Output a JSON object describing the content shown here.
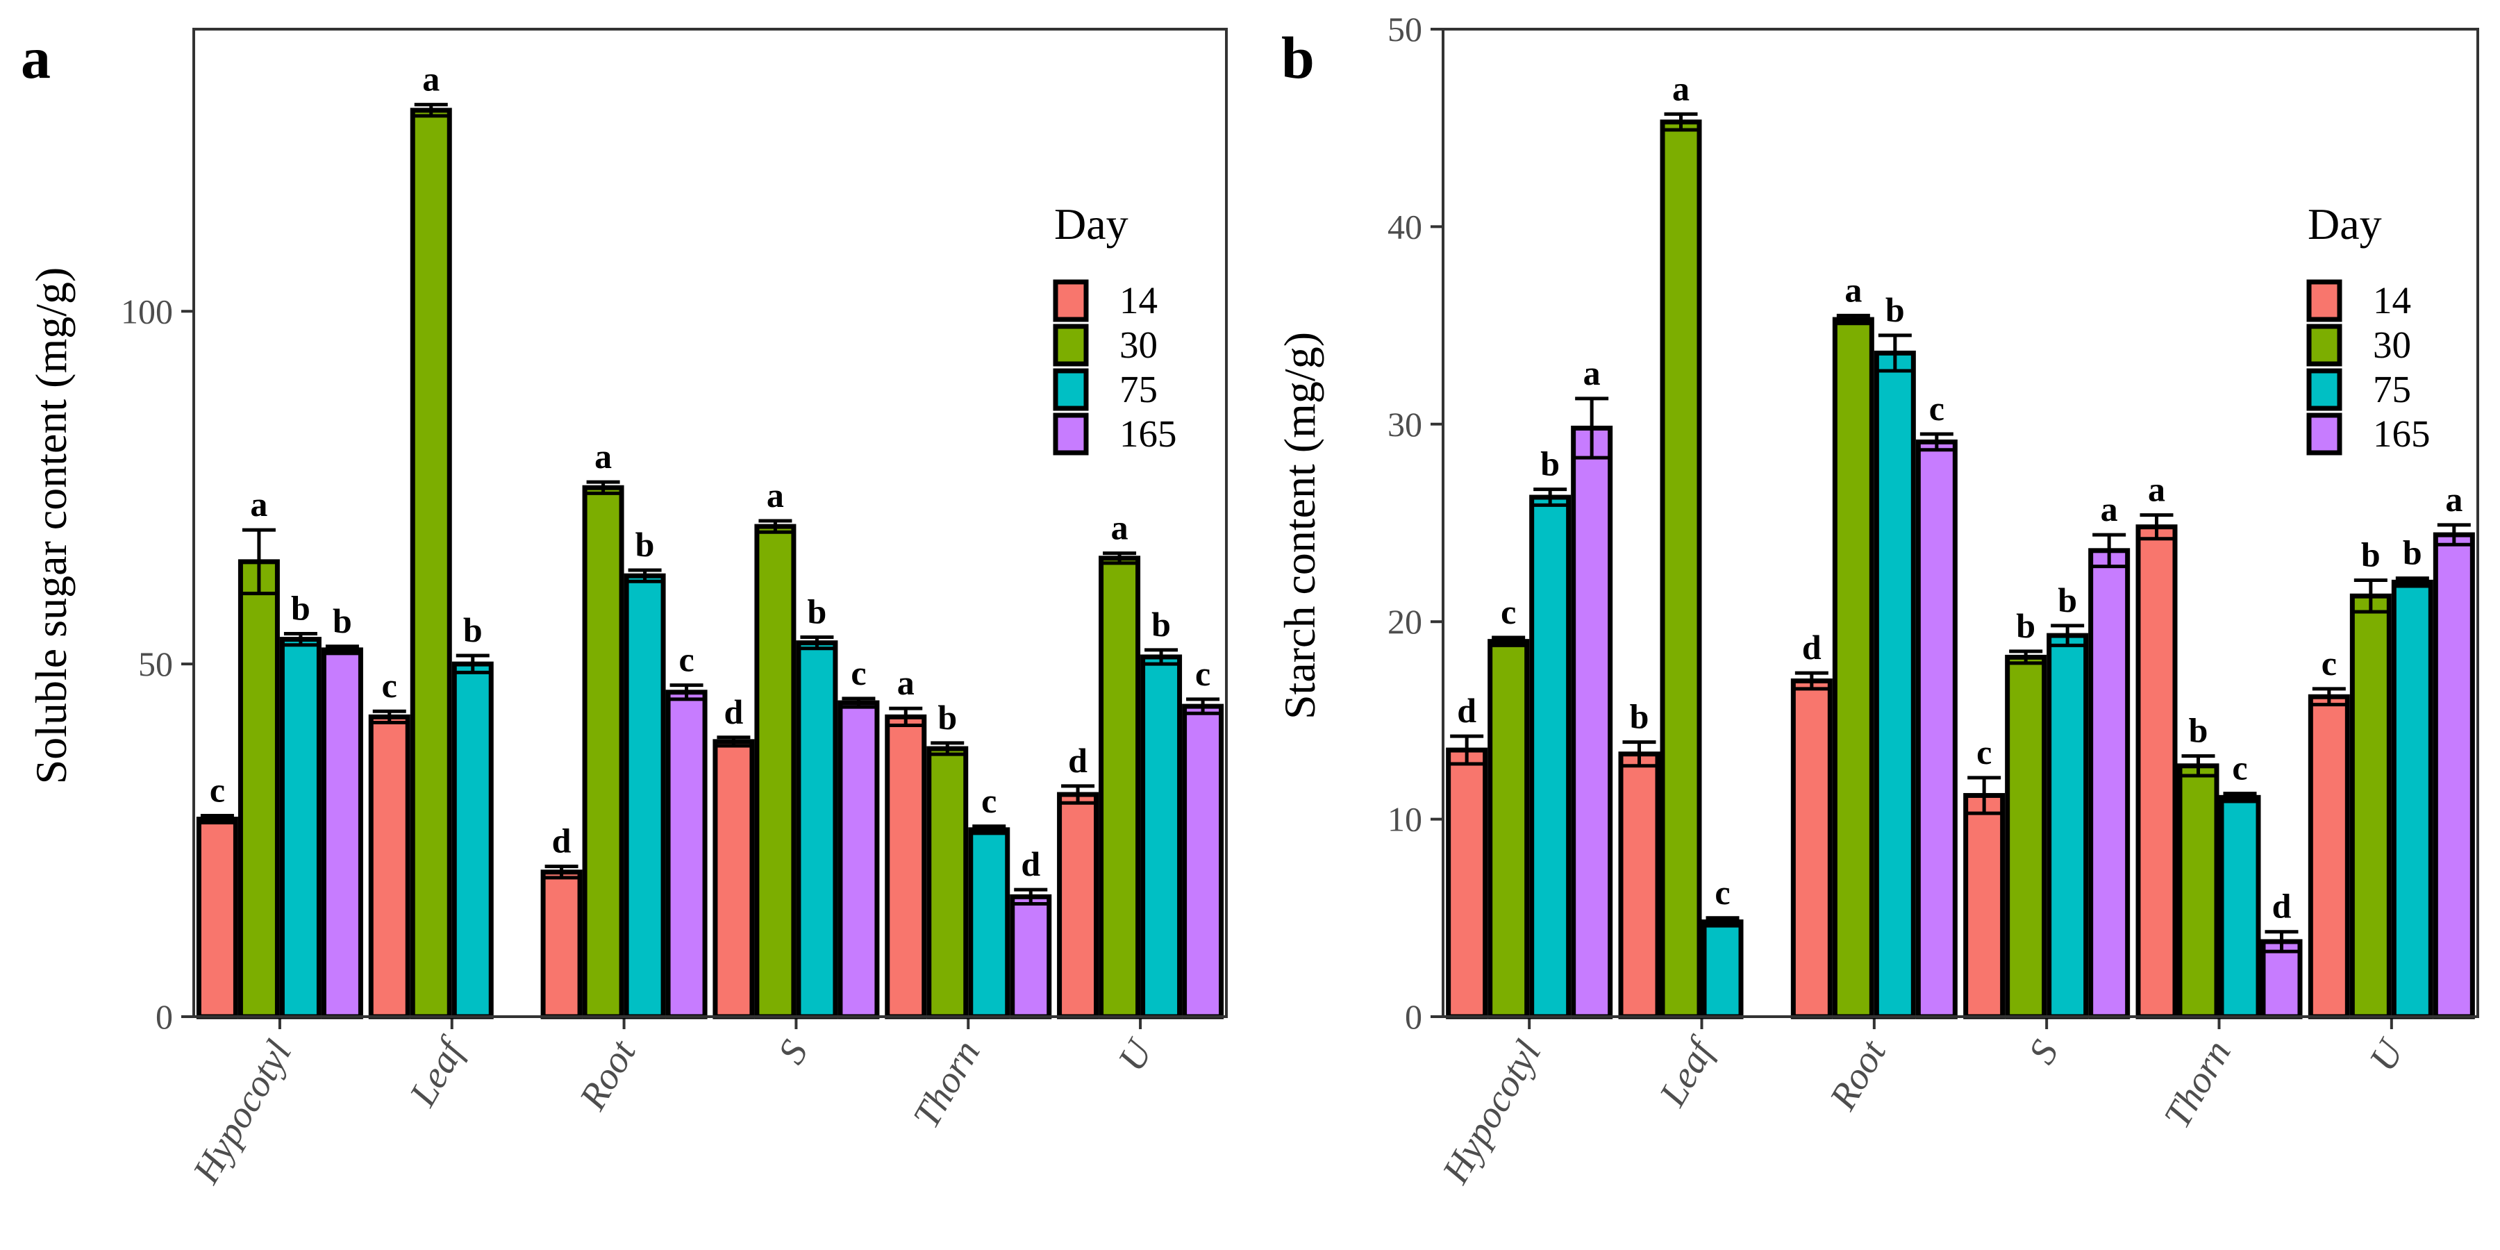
{
  "chart_data": [
    {
      "panel": "a",
      "type": "bar",
      "ylabel": "Soluble sugar content (mg/g)",
      "xlabel": "",
      "ylim": [
        0,
        140
      ],
      "yticks": [
        0,
        50,
        100
      ],
      "grid": false,
      "legend_position": "right",
      "legend_title": "Day",
      "categories": [
        "Hypocotyl",
        "Leaf",
        "Root",
        "S",
        "Thorn",
        "U"
      ],
      "series": [
        {
          "name": "14",
          "color": "#F8766D",
          "values": [
            28,
            42.5,
            20.5,
            39,
            42.5,
            31.5
          ],
          "errors": [
            0.5,
            0.8,
            0.8,
            0.6,
            1.2,
            1.2
          ],
          "labels": [
            "c",
            "c",
            "d",
            "d",
            "a",
            "d"
          ]
        },
        {
          "name": "30",
          "color": "#7CAE00",
          "values": [
            64.5,
            128.5,
            75,
            69.5,
            38,
            65
          ],
          "errors": [
            4.5,
            0.8,
            0.8,
            0.8,
            0.8,
            0.7
          ],
          "labels": [
            "a",
            "a",
            "a",
            "a",
            "b",
            "a"
          ]
        },
        {
          "name": "75",
          "color": "#00BFC4",
          "values": [
            53.5,
            50,
            62.5,
            53,
            26.5,
            51
          ],
          "errors": [
            0.8,
            1.2,
            0.8,
            0.8,
            0.5,
            1.0
          ],
          "labels": [
            "b",
            "b",
            "b",
            "b",
            "c",
            "b"
          ]
        },
        {
          "name": "165",
          "color": "#C77CFF",
          "values": [
            52,
            null,
            46,
            44.5,
            17,
            44
          ],
          "errors": [
            0.5,
            null,
            1.0,
            0.6,
            1.0,
            1.0
          ],
          "labels": [
            "b",
            "",
            "c",
            "c",
            "d",
            "c"
          ]
        }
      ]
    },
    {
      "panel": "b",
      "type": "bar",
      "ylabel": "Starch content (mg/g)",
      "xlabel": "",
      "ylim": [
        0,
        50
      ],
      "yticks": [
        0,
        10,
        20,
        30,
        40,
        50
      ],
      "grid": false,
      "legend_position": "right",
      "legend_title": "Day",
      "categories": [
        "Hypocotyl",
        "Leaf",
        "Root",
        "S",
        "Thorn",
        "U"
      ],
      "series": [
        {
          "name": "14",
          "color": "#F8766D",
          "values": [
            13.5,
            13.3,
            17,
            11.2,
            24.8,
            16.2
          ],
          "errors": [
            0.7,
            0.6,
            0.4,
            0.9,
            0.6,
            0.4
          ],
          "labels": [
            "d",
            "b",
            "d",
            "c",
            "a",
            "c"
          ]
        },
        {
          "name": "30",
          "color": "#7CAE00",
          "values": [
            19,
            45.3,
            35.3,
            18.2,
            12.7,
            21.3
          ],
          "errors": [
            0.2,
            0.4,
            0.2,
            0.3,
            0.5,
            0.8
          ],
          "labels": [
            "c",
            "a",
            "a",
            "b",
            "b",
            "b"
          ]
        },
        {
          "name": "75",
          "color": "#00BFC4",
          "values": [
            26.3,
            4.8,
            33.6,
            19.3,
            11.1,
            22
          ],
          "errors": [
            0.4,
            0.2,
            0.9,
            0.5,
            0.2,
            0.2
          ],
          "labels": [
            "b",
            "c",
            "b",
            "b",
            "c",
            "b"
          ]
        },
        {
          "name": "165",
          "color": "#C77CFF",
          "values": [
            29.8,
            null,
            29.1,
            23.6,
            3.8,
            24.4
          ],
          "errors": [
            1.5,
            null,
            0.4,
            0.8,
            0.5,
            0.5
          ],
          "labels": [
            "a",
            "",
            "c",
            "a",
            "d",
            "a"
          ]
        }
      ]
    }
  ]
}
